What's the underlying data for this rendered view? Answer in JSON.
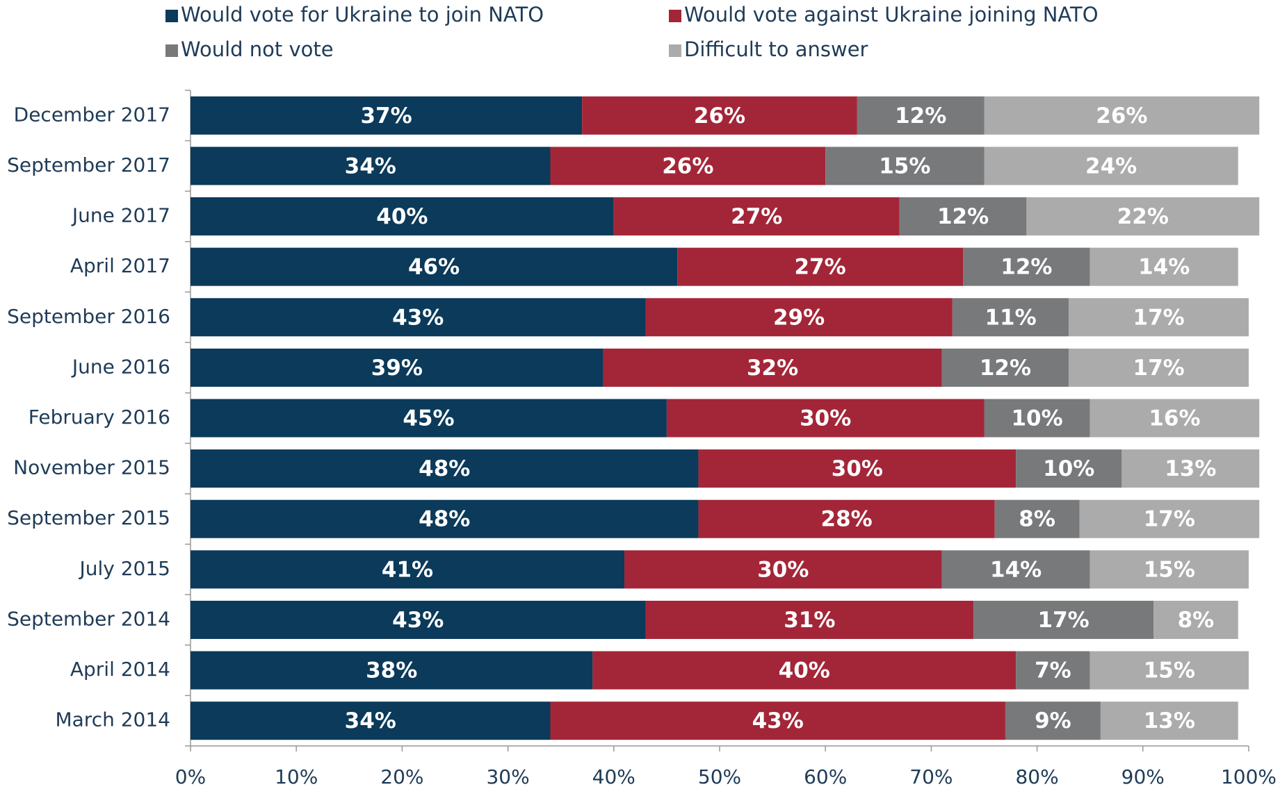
{
  "chart_data": {
    "type": "stacked-barh",
    "categories": [
      "December 2017",
      "September 2017",
      "June 2017",
      "April 2017",
      "September 2016",
      "June 2016",
      "February 2016",
      "November 2015",
      "September 2015",
      "July 2015",
      "September 2014",
      "April 2014",
      "March 2014"
    ],
    "series": [
      {
        "name": "Would vote for Ukraine to join NATO",
        "color": "#0b3a5a",
        "values": [
          37,
          34,
          40,
          46,
          43,
          39,
          45,
          48,
          48,
          41,
          43,
          38,
          34
        ],
        "value_labels": [
          "37%",
          "34%",
          "40%",
          "46%",
          "43%",
          "39%",
          "45%",
          "48%",
          "48%",
          "41%",
          "43%",
          "38%",
          "34%"
        ]
      },
      {
        "name": "Would vote against Ukraine joining NATO",
        "color": "#a32638",
        "values": [
          26,
          26,
          27,
          27,
          29,
          32,
          30,
          30,
          28,
          30,
          31,
          40,
          43
        ],
        "value_labels": [
          "26%",
          "26%",
          "27%",
          "27%",
          "29%",
          "32%",
          "30%",
          "30%",
          "28%",
          "30%",
          "31%",
          "40%",
          "43%"
        ]
      },
      {
        "name": "Would not vote",
        "color": "#78797b",
        "values": [
          12,
          15,
          12,
          12,
          11,
          12,
          10,
          10,
          8,
          14,
          17,
          7,
          9
        ],
        "value_labels": [
          "12%",
          "15%",
          "12%",
          "12%",
          "11%",
          "12%",
          "10%",
          "10%",
          "8%",
          "14%",
          "17%",
          "7%",
          "9%"
        ]
      },
      {
        "name": "Difficult to answer",
        "color": "#ababab",
        "values": [
          26,
          24,
          22,
          14,
          17,
          17,
          16,
          13,
          17,
          15,
          8,
          15,
          13
        ],
        "value_labels": [
          "26%",
          "24%",
          "22%",
          "14%",
          "17%",
          "17%",
          "16%",
          "13%",
          "17%",
          "15%",
          "8%",
          "15%",
          "13%"
        ]
      }
    ],
    "xlim": [
      0,
      100
    ],
    "xticks": [
      {
        "value": 0,
        "label": "0%"
      },
      {
        "value": 10,
        "label": "10%"
      },
      {
        "value": 20,
        "label": "20%"
      },
      {
        "value": 30,
        "label": "30%"
      },
      {
        "value": 40,
        "label": "40%"
      },
      {
        "value": 50,
        "label": "50%"
      },
      {
        "value": 60,
        "label": "60%"
      },
      {
        "value": 70,
        "label": "70%"
      },
      {
        "value": 80,
        "label": "80%"
      },
      {
        "value": 90,
        "label": "90%"
      },
      {
        "value": 100,
        "label": "100%"
      }
    ],
    "legend": "top"
  }
}
